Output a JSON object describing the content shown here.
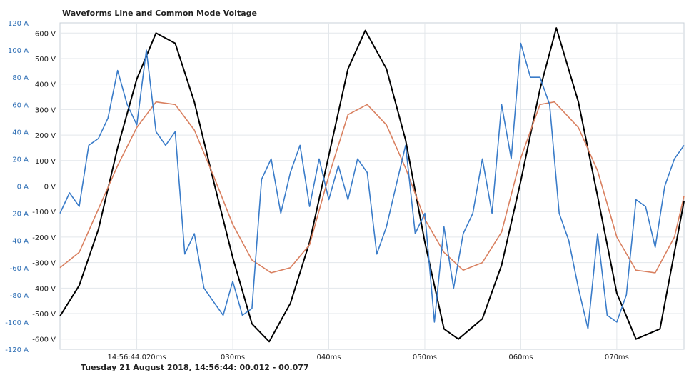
{
  "chart_data": {
    "type": "line",
    "title": "Waveforms Line and Common Mode Voltage",
    "footer": "Tuesday 21 August 2018, 14:56:44: 00.012 - 00.077",
    "x_range_ms": [
      12,
      77
    ],
    "x_ticks": [
      {
        "ms": 20,
        "label": "14:56:44.020ms"
      },
      {
        "ms": 30,
        "label": "030ms"
      },
      {
        "ms": 40,
        "label": "040ms"
      },
      {
        "ms": 50,
        "label": "050ms"
      },
      {
        "ms": 60,
        "label": "060ms"
      },
      {
        "ms": 70,
        "label": "070ms"
      }
    ],
    "y_current": {
      "ylim": [
        -120,
        120
      ],
      "ticks": [
        "120 A",
        "100 A",
        "80 A",
        "60 A",
        "40 A",
        "20 A",
        "0 A",
        "-20 A",
        "-40 A",
        "-60 A",
        "-80 A",
        "-100 A",
        "-120 A"
      ]
    },
    "y_voltage": {
      "ticks": [
        "600 V",
        "500 V",
        "400 V",
        "300 V",
        "200 V",
        "100 V",
        "0 V",
        "-100 V",
        "-200 V",
        "-300 V",
        "-400 V",
        "-500 V",
        "-600 V"
      ]
    },
    "grid": true,
    "series": [
      {
        "color": "#000000",
        "axis": "voltage",
        "points_ms_v": [
          [
            12,
            -510
          ],
          [
            14,
            -390
          ],
          [
            16,
            -170
          ],
          [
            18,
            150
          ],
          [
            20,
            420
          ],
          [
            22,
            600
          ],
          [
            24,
            560
          ],
          [
            26,
            330
          ],
          [
            28,
            20
          ],
          [
            30,
            -280
          ],
          [
            32,
            -540
          ],
          [
            33.8,
            -610
          ],
          [
            36,
            -460
          ],
          [
            38,
            -220
          ],
          [
            40,
            120
          ],
          [
            42,
            460
          ],
          [
            43.8,
            610
          ],
          [
            46,
            460
          ],
          [
            48,
            180
          ],
          [
            50,
            -220
          ],
          [
            52,
            -560
          ],
          [
            53.5,
            -600
          ],
          [
            56,
            -520
          ],
          [
            58,
            -310
          ],
          [
            60,
            20
          ],
          [
            62,
            380
          ],
          [
            63.7,
            620
          ],
          [
            66,
            330
          ],
          [
            68,
            -40
          ],
          [
            70,
            -420
          ],
          [
            72,
            -600
          ],
          [
            74.5,
            -560
          ],
          [
            76,
            -260
          ],
          [
            77,
            -60
          ]
        ]
      },
      {
        "color": "#d98060",
        "axis": "voltage",
        "points_ms_v": [
          [
            12,
            -320
          ],
          [
            14,
            -260
          ],
          [
            16,
            -90
          ],
          [
            18,
            80
          ],
          [
            20,
            230
          ],
          [
            22,
            330
          ],
          [
            24,
            320
          ],
          [
            26,
            220
          ],
          [
            28,
            40
          ],
          [
            30,
            -150
          ],
          [
            32,
            -290
          ],
          [
            34,
            -340
          ],
          [
            36,
            -320
          ],
          [
            38,
            -230
          ],
          [
            40,
            40
          ],
          [
            42,
            280
          ],
          [
            44,
            320
          ],
          [
            46,
            240
          ],
          [
            48,
            70
          ],
          [
            50,
            -130
          ],
          [
            52,
            -260
          ],
          [
            54,
            -330
          ],
          [
            56,
            -300
          ],
          [
            58,
            -180
          ],
          [
            60,
            110
          ],
          [
            62,
            320
          ],
          [
            63.5,
            330
          ],
          [
            66,
            230
          ],
          [
            68,
            60
          ],
          [
            70,
            -200
          ],
          [
            72,
            -330
          ],
          [
            74,
            -340
          ],
          [
            76,
            -200
          ],
          [
            77,
            -40
          ]
        ]
      },
      {
        "color": "#3a7cc9",
        "axis": "current",
        "points_ms_v": [
          [
            12,
            -20
          ],
          [
            13,
            -5
          ],
          [
            14,
            -15
          ],
          [
            15,
            30
          ],
          [
            16,
            35
          ],
          [
            17,
            50
          ],
          [
            18,
            85
          ],
          [
            19,
            60
          ],
          [
            20,
            45
          ],
          [
            21,
            100
          ],
          [
            22,
            40
          ],
          [
            23,
            30
          ],
          [
            24,
            40
          ],
          [
            25,
            -50
          ],
          [
            26,
            -35
          ],
          [
            27,
            -75
          ],
          [
            28,
            -85
          ],
          [
            29,
            -95
          ],
          [
            30,
            -70
          ],
          [
            31,
            -95
          ],
          [
            32,
            -90
          ],
          [
            33,
            5
          ],
          [
            34,
            20
          ],
          [
            35,
            -20
          ],
          [
            36,
            10
          ],
          [
            37,
            30
          ],
          [
            38,
            -15
          ],
          [
            39,
            20
          ],
          [
            40,
            -10
          ],
          [
            41,
            15
          ],
          [
            42,
            -10
          ],
          [
            43,
            20
          ],
          [
            44,
            10
          ],
          [
            45,
            -50
          ],
          [
            46,
            -30
          ],
          [
            47,
            0
          ],
          [
            48,
            30
          ],
          [
            49,
            -35
          ],
          [
            50,
            -20
          ],
          [
            51,
            -100
          ],
          [
            52,
            -30
          ],
          [
            53,
            -75
          ],
          [
            54,
            -35
          ],
          [
            55,
            -20
          ],
          [
            56,
            20
          ],
          [
            57,
            -20
          ],
          [
            58,
            60
          ],
          [
            59,
            20
          ],
          [
            60,
            105
          ],
          [
            61,
            80
          ],
          [
            62,
            80
          ],
          [
            63,
            60
          ],
          [
            64,
            -20
          ],
          [
            65,
            -40
          ],
          [
            66,
            -75
          ],
          [
            67,
            -105
          ],
          [
            68,
            -35
          ],
          [
            69,
            -95
          ],
          [
            70,
            -100
          ],
          [
            71,
            -80
          ],
          [
            72,
            -10
          ],
          [
            73,
            -15
          ],
          [
            74,
            -45
          ],
          [
            75,
            0
          ],
          [
            76,
            20
          ],
          [
            77,
            30
          ]
        ]
      }
    ]
  }
}
